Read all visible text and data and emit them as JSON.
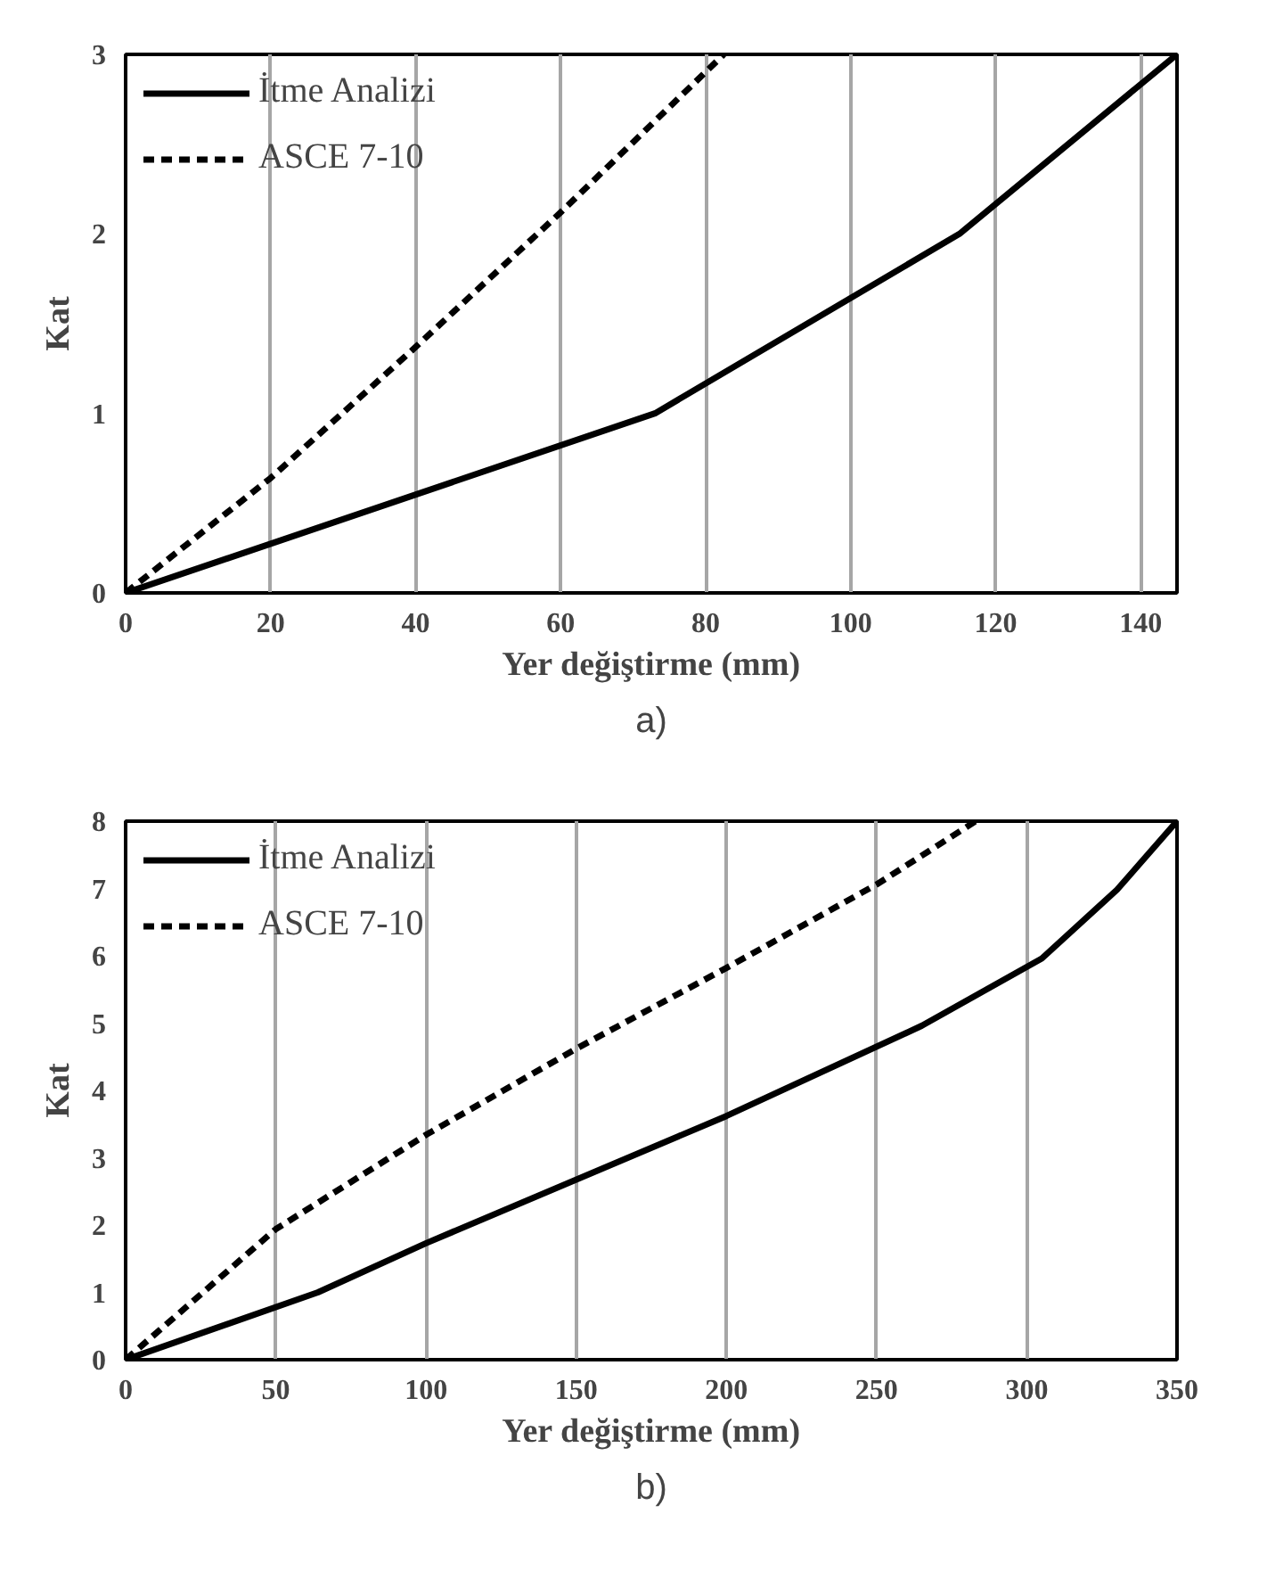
{
  "chart_data": [
    {
      "type": "line",
      "xlabel": "Yer değiştirme (mm)",
      "ylabel": "Kat",
      "annotations": [
        "a)"
      ],
      "xlim": [
        0,
        145
      ],
      "xticks": [
        0,
        20,
        40,
        60,
        80,
        100,
        120,
        140
      ],
      "ylim": [
        0,
        3
      ],
      "yticks": [
        0,
        1,
        2,
        3
      ],
      "grid": "x",
      "legend": "top left",
      "series": [
        {
          "name": "İtme Analizi",
          "color": "#000000",
          "line_style": "solid",
          "x": [
            0,
            73,
            115,
            145
          ],
          "values": [
            0,
            1,
            2,
            3
          ]
        },
        {
          "name": "ASCE 7-10",
          "color": "#000000",
          "line_style": "dashed",
          "x": [
            0,
            20,
            40,
            60,
            82.5
          ],
          "values": [
            0,
            0.64,
            1.37,
            2.12,
            3
          ]
        }
      ]
    },
    {
      "type": "line",
      "xlabel": "Yer değiştirme (mm)",
      "ylabel": "Kat",
      "annotations": [
        "b)"
      ],
      "xlim": [
        0,
        350
      ],
      "xticks": [
        0,
        50,
        100,
        150,
        200,
        250,
        300,
        350
      ],
      "ylim": [
        0,
        8
      ],
      "yticks": [
        0,
        1,
        2,
        3,
        4,
        5,
        6,
        7,
        8
      ],
      "grid": "x",
      "legend": "top left",
      "series": [
        {
          "name": "İtme Analizi",
          "color": "#000000",
          "line_style": "solid",
          "x": [
            0,
            64,
            100,
            200,
            265,
            305,
            330,
            350
          ],
          "values": [
            0,
            1,
            1.73,
            3.62,
            4.96,
            5.96,
            6.98,
            8
          ]
        },
        {
          "name": "ASCE 7-10",
          "color": "#000000",
          "line_style": "dashed",
          "x": [
            0,
            50,
            100,
            150,
            200,
            250,
            283
          ],
          "values": [
            0,
            1.94,
            3.34,
            4.62,
            5.82,
            7.06,
            8
          ]
        }
      ]
    }
  ]
}
